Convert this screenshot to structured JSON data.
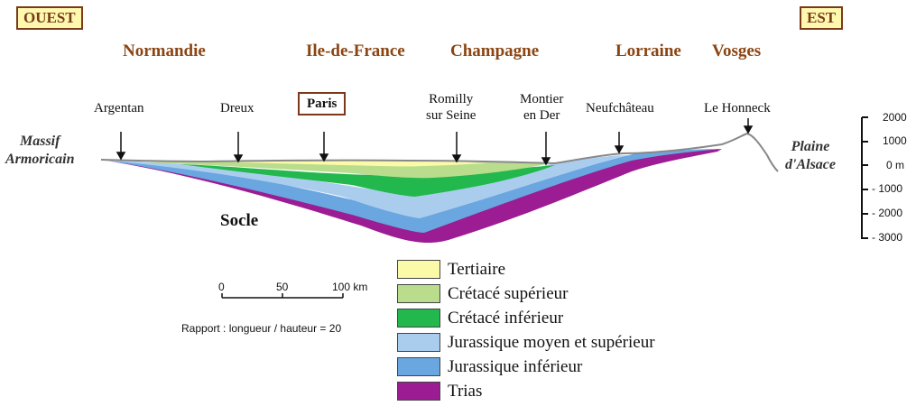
{
  "directions": {
    "west": "OUEST",
    "east": "EST"
  },
  "regions": [
    "Normandie",
    "Ile-de-France",
    "Champagne",
    "Lorraine",
    "Vosges"
  ],
  "towns": {
    "argentan": "Argentan",
    "dreux": "Dreux",
    "paris": "Paris",
    "romilly": [
      "Romilly",
      "sur Seine"
    ],
    "montier": [
      "Montier",
      "en Der"
    ],
    "neufchateau": "Neufchâteau",
    "honneck": "Le Honneck"
  },
  "sides": {
    "west": [
      "Massif",
      "Armoricain"
    ],
    "east": [
      "Plaine",
      "d'Alsace"
    ]
  },
  "socle": "Socle",
  "altitude_scale": [
    "2000",
    "1000",
    "0 m",
    "- 1000",
    "- 2000",
    "- 3000"
  ],
  "distance_scale": [
    "0",
    "50",
    "100 km"
  ],
  "ratio": "Rapport : longueur / hauteur = 20",
  "legend": [
    {
      "label": "Tertiaire",
      "color": "#fafaa8"
    },
    {
      "label": "Crétacé supérieur",
      "color": "#b9dd8c"
    },
    {
      "label": "Crétacé inférieur",
      "color": "#22b84e"
    },
    {
      "label": "Jurassique moyen et supérieur",
      "color": "#aacdee"
    },
    {
      "label": "Jurassique inférieur",
      "color": "#6aa6e0"
    },
    {
      "label": "Trias",
      "color": "#9b1c93"
    }
  ]
}
